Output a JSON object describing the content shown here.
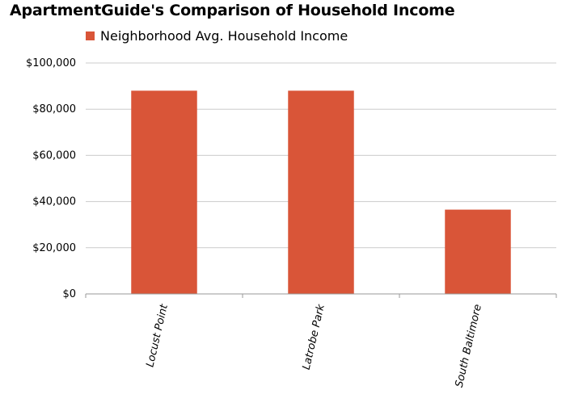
{
  "colors": {
    "bar": "#d95538",
    "grid": "#cccccc",
    "axis": "#999999"
  },
  "chart_data": {
    "type": "bar",
    "title": "ApartmentGuide's Comparison of Household Income",
    "categories": [
      "Locust Point",
      "Latrobe Park",
      "South Baltimore"
    ],
    "series": [
      {
        "name": "Neighborhood Avg. Household Income",
        "values": [
          88000,
          88000,
          36500
        ]
      }
    ],
    "ylim": [
      0,
      100000
    ],
    "yticks": [
      0,
      20000,
      40000,
      60000,
      80000,
      100000
    ],
    "ytick_labels": [
      "$0",
      "$20,000",
      "$40,000",
      "$60,000",
      "$80,000",
      "$100,000"
    ],
    "grid": true,
    "legend": "top-left"
  }
}
